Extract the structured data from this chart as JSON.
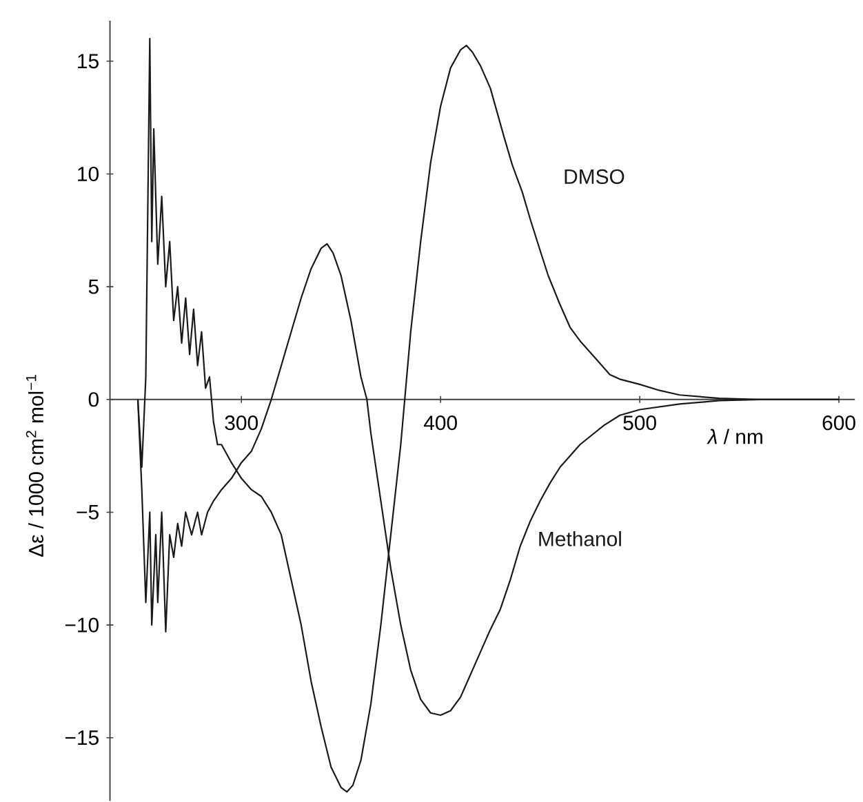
{
  "chart_data": {
    "type": "line",
    "xlabel": "*λ* / nm",
    "ylabel": "Δε / 1000 cm$^{2}$ mol$^{−1}$",
    "xlim": [
      234,
      608
    ],
    "ylim": [
      -17.8,
      16.8
    ],
    "xticks": [
      300,
      400,
      500,
      600
    ],
    "yticks": [
      {
        "value": -15,
        "label": "−15"
      },
      {
        "value": -10,
        "label": "−10"
      },
      {
        "value": -5,
        "label": "−5"
      },
      0,
      5,
      10,
      15
    ],
    "series": [
      {
        "name": "DMSO",
        "color": "#1a1a1a",
        "x": [
          248,
          250,
          252,
          254,
          255,
          256,
          258,
          260,
          262,
          264,
          266,
          268,
          270,
          272,
          274,
          276,
          278,
          280,
          282,
          284,
          286,
          288,
          290,
          295,
          300,
          305,
          310,
          315,
          320,
          325,
          330,
          335,
          340,
          345,
          350,
          353,
          356,
          360,
          365,
          370,
          375,
          380,
          382,
          385,
          390,
          395,
          400,
          405,
          410,
          413,
          416,
          420,
          425,
          432,
          436,
          441,
          445,
          450,
          454,
          460,
          465,
          470,
          477,
          485,
          490,
          500,
          510,
          520,
          540,
          560,
          580,
          600
        ],
        "values": [
          0,
          -3,
          1,
          16,
          7,
          12,
          6,
          9,
          5,
          7,
          3.5,
          5,
          2.5,
          4.5,
          2,
          4,
          1.5,
          3,
          0.5,
          1,
          -1,
          -2,
          -2,
          -2.8,
          -3.5,
          -4,
          -4.3,
          -5,
          -6,
          -8,
          -10,
          -12.5,
          -14.5,
          -16.3,
          -17.2,
          -17.4,
          -17.1,
          -16,
          -13.5,
          -10,
          -6,
          -2,
          0,
          3,
          7,
          10.5,
          13,
          14.7,
          15.5,
          15.7,
          15.4,
          14.8,
          13.8,
          11.6,
          10.4,
          9.2,
          8,
          6.6,
          5.5,
          4.2,
          3.2,
          2.6,
          1.9,
          1.1,
          0.9,
          0.67,
          0.4,
          0.2,
          0.05,
          0,
          0,
          0
        ]
      },
      {
        "name": "Methanol",
        "color": "#1a1a1a",
        "x": [
          248,
          250,
          252,
          254,
          255,
          257,
          258,
          260,
          262,
          264,
          266,
          268,
          270,
          272,
          275,
          278,
          280,
          283,
          286,
          290,
          295,
          300,
          305,
          310,
          315,
          320,
          325,
          330,
          335,
          340,
          343,
          346,
          350,
          355,
          360,
          363,
          365,
          370,
          375,
          380,
          385,
          390,
          395,
          400,
          405,
          410,
          413,
          420,
          425,
          430,
          435,
          440,
          445,
          450,
          455,
          460,
          470,
          482,
          490,
          500,
          520,
          540,
          560,
          580,
          600
        ],
        "values": [
          0,
          -4,
          -9,
          -5,
          -10,
          -6,
          -9,
          -5,
          -10.3,
          -6,
          -7,
          -5.5,
          -6.5,
          -5,
          -6,
          -5,
          -6,
          -5,
          -4.5,
          -4,
          -3.5,
          -2.8,
          -2.3,
          -1.3,
          0,
          1.5,
          3,
          4.5,
          5.8,
          6.7,
          6.9,
          6.5,
          5.5,
          3.5,
          1,
          0,
          -1.5,
          -4.5,
          -7.5,
          -10,
          -12,
          -13.3,
          -13.9,
          -14,
          -13.8,
          -13.2,
          -12.6,
          -11.2,
          -10.2,
          -9.3,
          -8,
          -6.5,
          -5.4,
          -4.5,
          -3.7,
          -3,
          -2,
          -1.15,
          -0.7,
          -0.45,
          -0.2,
          -0.05,
          0,
          0,
          0
        ]
      }
    ]
  }
}
